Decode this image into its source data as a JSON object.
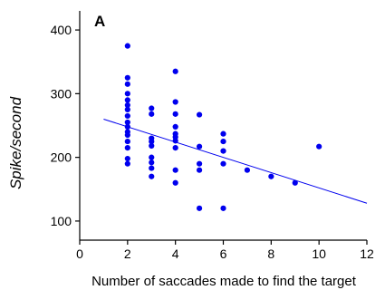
{
  "chart_data": {
    "type": "scatter",
    "panel_label": "A",
    "title": "",
    "xlabel": "Number of saccades made to find the target",
    "ylabel": "Spike/second",
    "xlim": [
      0,
      12
    ],
    "ylim": [
      70,
      430
    ],
    "xticks": [
      0,
      2,
      4,
      6,
      8,
      10,
      12
    ],
    "yticks": [
      100,
      200,
      300,
      400
    ],
    "grid": false,
    "legend": "none",
    "point_color": "#0000ee",
    "line_color": "#0000ee",
    "points": [
      [
        2,
        375
      ],
      [
        2,
        325
      ],
      [
        2,
        315
      ],
      [
        2,
        300
      ],
      [
        2,
        290
      ],
      [
        2,
        282
      ],
      [
        2,
        275
      ],
      [
        2,
        265
      ],
      [
        2,
        255
      ],
      [
        2,
        248
      ],
      [
        2,
        240
      ],
      [
        2,
        235
      ],
      [
        2,
        225
      ],
      [
        2,
        215
      ],
      [
        2,
        198
      ],
      [
        2,
        190
      ],
      [
        3,
        277
      ],
      [
        3,
        268
      ],
      [
        3,
        230
      ],
      [
        3,
        225
      ],
      [
        3,
        218
      ],
      [
        3,
        200
      ],
      [
        3,
        192
      ],
      [
        3,
        183
      ],
      [
        3,
        170
      ],
      [
        4,
        335
      ],
      [
        4,
        287
      ],
      [
        4,
        268
      ],
      [
        4,
        248
      ],
      [
        4,
        237
      ],
      [
        4,
        232
      ],
      [
        4,
        226
      ],
      [
        4,
        215
      ],
      [
        4,
        180
      ],
      [
        4,
        160
      ],
      [
        5,
        267
      ],
      [
        5,
        217
      ],
      [
        5,
        190
      ],
      [
        5,
        180
      ],
      [
        5,
        120
      ],
      [
        6,
        237
      ],
      [
        6,
        225
      ],
      [
        6,
        210
      ],
      [
        6,
        190
      ],
      [
        6,
        120
      ],
      [
        7,
        180
      ],
      [
        8,
        170
      ],
      [
        9,
        160
      ],
      [
        10,
        217
      ]
    ],
    "regression": {
      "x": [
        1,
        12
      ],
      "y": [
        260,
        128
      ]
    }
  }
}
